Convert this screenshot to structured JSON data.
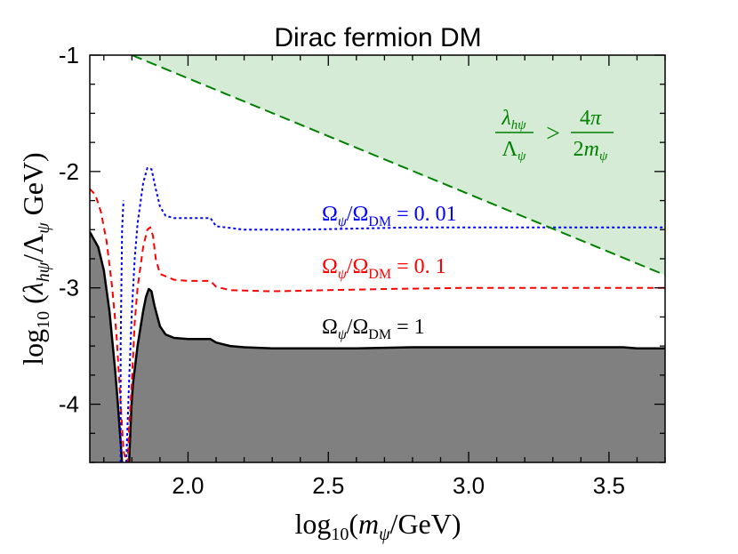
{
  "chart_data": {
    "type": "line",
    "title": "Dirac fermion DM",
    "xlabel": "log₁₀(mψ/GeV)",
    "ylabel": "log₁₀(λhψ/Λψ GeV)",
    "xlim": [
      1.65,
      3.7
    ],
    "ylim": [
      -4.5,
      -1.0
    ],
    "x_ticks": [
      2.0,
      2.5,
      3.0,
      3.5
    ],
    "x_tick_labels": [
      "2.0",
      "2.5",
      "3.0",
      "3.5"
    ],
    "y_ticks": [
      -4,
      -3,
      -2,
      -1
    ],
    "y_tick_labels": [
      "-4",
      "-3",
      "-2",
      "-1"
    ],
    "grid": false,
    "colors": {
      "relic_1": "#000000",
      "excluded_fill": "#808080",
      "relic_0p1": "#ff0000",
      "relic_0p01": "#0000ff",
      "perturbative_line": "#008000",
      "perturbative_fill": "#d5ebd5"
    },
    "perturbativity_label": "λhψ/Λψ > 4π/2mψ",
    "series": [
      {
        "name": "Ωψ/ΩDM = 1",
        "style": "solid",
        "fill_below": true,
        "x": [
          1.65,
          1.68,
          1.7,
          1.72,
          1.74,
          1.75,
          1.765,
          1.775,
          1.785,
          1.79,
          1.795,
          1.8,
          1.805,
          1.81,
          1.82,
          1.83,
          1.84,
          1.85,
          1.86,
          1.87,
          1.88,
          1.9,
          1.92,
          1.95,
          2.0,
          2.05,
          2.08,
          2.1,
          2.15,
          2.2,
          2.3,
          2.4,
          2.6,
          2.8,
          3.0,
          3.2,
          3.4,
          3.55,
          3.6,
          3.7
        ],
        "y": [
          -2.52,
          -2.65,
          -2.85,
          -3.2,
          -3.7,
          -4.0,
          -4.5,
          -4.55,
          -4.55,
          -4.5,
          -4.2,
          -3.95,
          -3.8,
          -3.7,
          -3.5,
          -3.35,
          -3.2,
          -3.08,
          -3.01,
          -3.03,
          -3.15,
          -3.33,
          -3.4,
          -3.43,
          -3.44,
          -3.44,
          -3.44,
          -3.47,
          -3.5,
          -3.51,
          -3.52,
          -3.52,
          -3.52,
          -3.51,
          -3.51,
          -3.51,
          -3.51,
          -3.51,
          -3.52,
          -3.52
        ]
      },
      {
        "name": "Ωψ/ΩDM = 0.1",
        "style": "dashed",
        "x": [
          1.65,
          1.67,
          1.69,
          1.71,
          1.73,
          1.745,
          1.76,
          1.77,
          1.78,
          1.785,
          1.79,
          1.8,
          1.81,
          1.82,
          1.84,
          1.855,
          1.865,
          1.875,
          1.885,
          1.9,
          1.95,
          2.0,
          2.05,
          2.08,
          2.1,
          2.15,
          2.3,
          2.5,
          2.7,
          3.0,
          3.3,
          3.6,
          3.7
        ],
        "y": [
          -2.15,
          -2.2,
          -2.35,
          -2.6,
          -3.0,
          -3.4,
          -4.0,
          -4.4,
          -4.5,
          -4.5,
          -4.2,
          -3.8,
          -3.3,
          -3.0,
          -2.65,
          -2.5,
          -2.48,
          -2.55,
          -2.75,
          -2.88,
          -2.93,
          -2.94,
          -2.94,
          -2.94,
          -2.99,
          -3.02,
          -3.03,
          -3.02,
          -3.01,
          -3.0,
          -3.0,
          -3.0,
          -3.0
        ]
      },
      {
        "name": "Ωψ/ΩDM = 0.01",
        "style": "dotted",
        "x": [
          1.78,
          1.79,
          1.8,
          1.81,
          1.82,
          1.84,
          1.855,
          1.87,
          1.885,
          1.9,
          1.92,
          1.95,
          2.0,
          2.05,
          2.08,
          2.1,
          2.2,
          2.3,
          2.4,
          2.6,
          2.8,
          3.0,
          3.3,
          3.6,
          3.7
        ],
        "y": [
          -4.5,
          -3.8,
          -3.2,
          -2.75,
          -2.45,
          -2.1,
          -1.97,
          -1.98,
          -2.15,
          -2.3,
          -2.38,
          -2.4,
          -2.4,
          -2.4,
          -2.4,
          -2.47,
          -2.5,
          -2.5,
          -2.5,
          -2.49,
          -2.48,
          -2.48,
          -2.48,
          -2.48,
          -2.48
        ]
      },
      {
        "name": "",
        "style": "dotted",
        "x": [
          1.76,
          1.76,
          1.765,
          1.77
        ],
        "y": [
          -4.5,
          -3.5,
          -2.5,
          -2.25
        ]
      },
      {
        "name": "perturbativity bound",
        "style": "dashed",
        "fill_above": true,
        "x": [
          1.8,
          3.7
        ],
        "y": [
          -1.0,
          -2.89
        ]
      }
    ],
    "annotations": [
      {
        "text": "Ωψ/ΩDM = 0.01",
        "color": "#0000ff",
        "x": 2.33,
        "y": -2.36
      },
      {
        "text": "Ωψ/ΩDM = 0.1",
        "color": "#ff0000",
        "x": 2.33,
        "y": -2.86
      },
      {
        "text": "Ωψ/ΩDM = 1",
        "color": "#000000",
        "x": 2.33,
        "y": -3.36
      }
    ]
  }
}
